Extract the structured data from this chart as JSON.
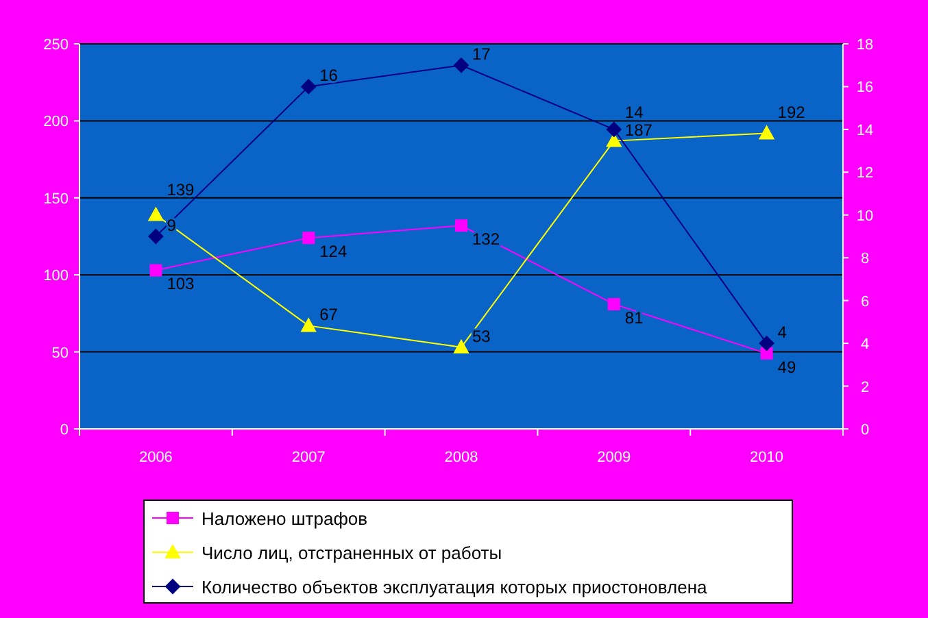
{
  "chart_data": {
    "type": "line",
    "categories": [
      "2006",
      "2007",
      "2008",
      "2009",
      "2010"
    ],
    "series": [
      {
        "name": "Наложено штрафов",
        "color": "#ff00ff",
        "marker": "square",
        "values": [
          103,
          124,
          132,
          81,
          49
        ]
      },
      {
        "name": "Число лиц, отстраненных от работы",
        "color": "#ffff00",
        "marker": "triangle",
        "values": [
          139,
          67,
          53,
          187,
          192
        ]
      },
      {
        "name": "Количество объектов эксплуатация которых приостоновлена",
        "color": "#000080",
        "marker": "diamond",
        "axis": "y2",
        "values": [
          9,
          16,
          17,
          14,
          4
        ]
      }
    ],
    "ylim": [
      0,
      250
    ],
    "yticks": [
      0,
      50,
      100,
      150,
      200,
      250
    ],
    "y2lim": [
      0,
      18
    ],
    "y2ticks": [
      0,
      2,
      4,
      6,
      8,
      10,
      12,
      14,
      16,
      18
    ],
    "grid": "y",
    "legend": "bottom",
    "data_labels": true
  }
}
